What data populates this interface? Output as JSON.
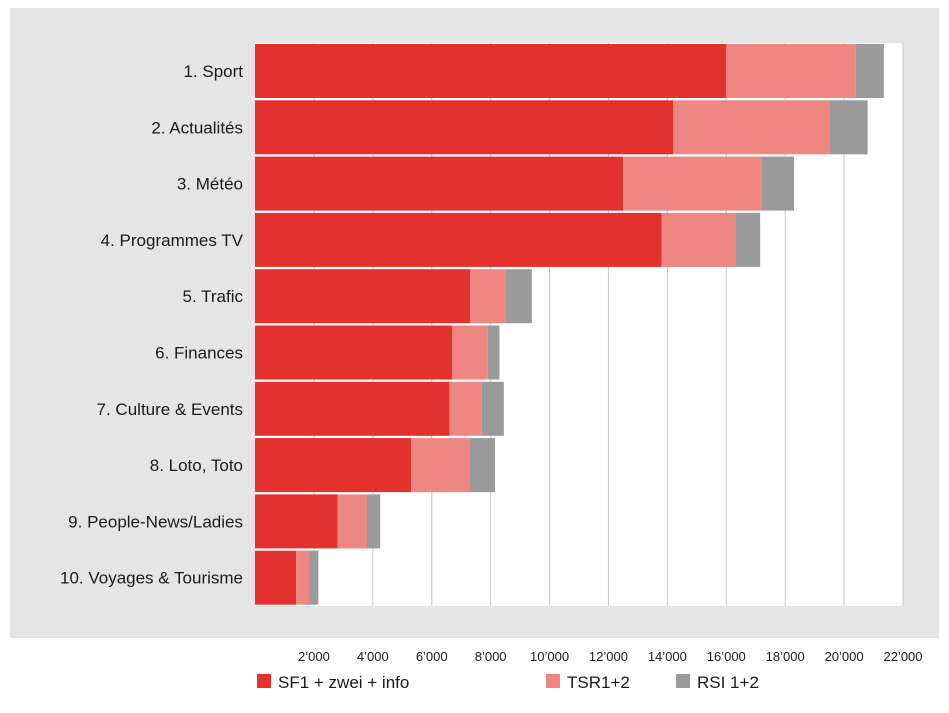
{
  "chart_data": {
    "type": "bar",
    "orientation": "horizontal",
    "stacked": true,
    "categories": [
      "1. Sport",
      "2. Actualités",
      "3. Météo",
      "4. Programmes TV",
      "5. Trafic",
      "6. Finances",
      "7. Culture & Events",
      "8. Loto, Toto",
      "9. People-News/Ladies",
      "10. Voyages & Tourisme"
    ],
    "series": [
      {
        "name": "SF1 + zwei + info",
        "color": "#e3312d",
        "values": [
          16000,
          14200,
          12500,
          13800,
          7300,
          6700,
          6600,
          5300,
          2800,
          1400
        ]
      },
      {
        "name": "TSR1+2",
        "color": "#ee8682",
        "values": [
          4400,
          5300,
          4700,
          2500,
          1200,
          1200,
          1100,
          2000,
          1000,
          450
        ]
      },
      {
        "name": "RSI 1+2",
        "color": "#9a9a9a",
        "values": [
          950,
          1300,
          1100,
          850,
          900,
          400,
          750,
          850,
          450,
          300
        ]
      }
    ],
    "xlim": [
      0,
      22000
    ],
    "ticks": [
      2000,
      4000,
      6000,
      8000,
      10000,
      12000,
      14000,
      16000,
      18000,
      20000,
      22000
    ],
    "tick_labels": [
      "2’000",
      "4’000",
      "6’000",
      "8’000",
      "10’000",
      "12’000",
      "14’000",
      "16’000",
      "18’000",
      "20’000",
      "22’000"
    ],
    "grid": true,
    "legend_position": "bottom",
    "background_color": "#e5e5e5",
    "plot_background_color": "#ffffff"
  }
}
